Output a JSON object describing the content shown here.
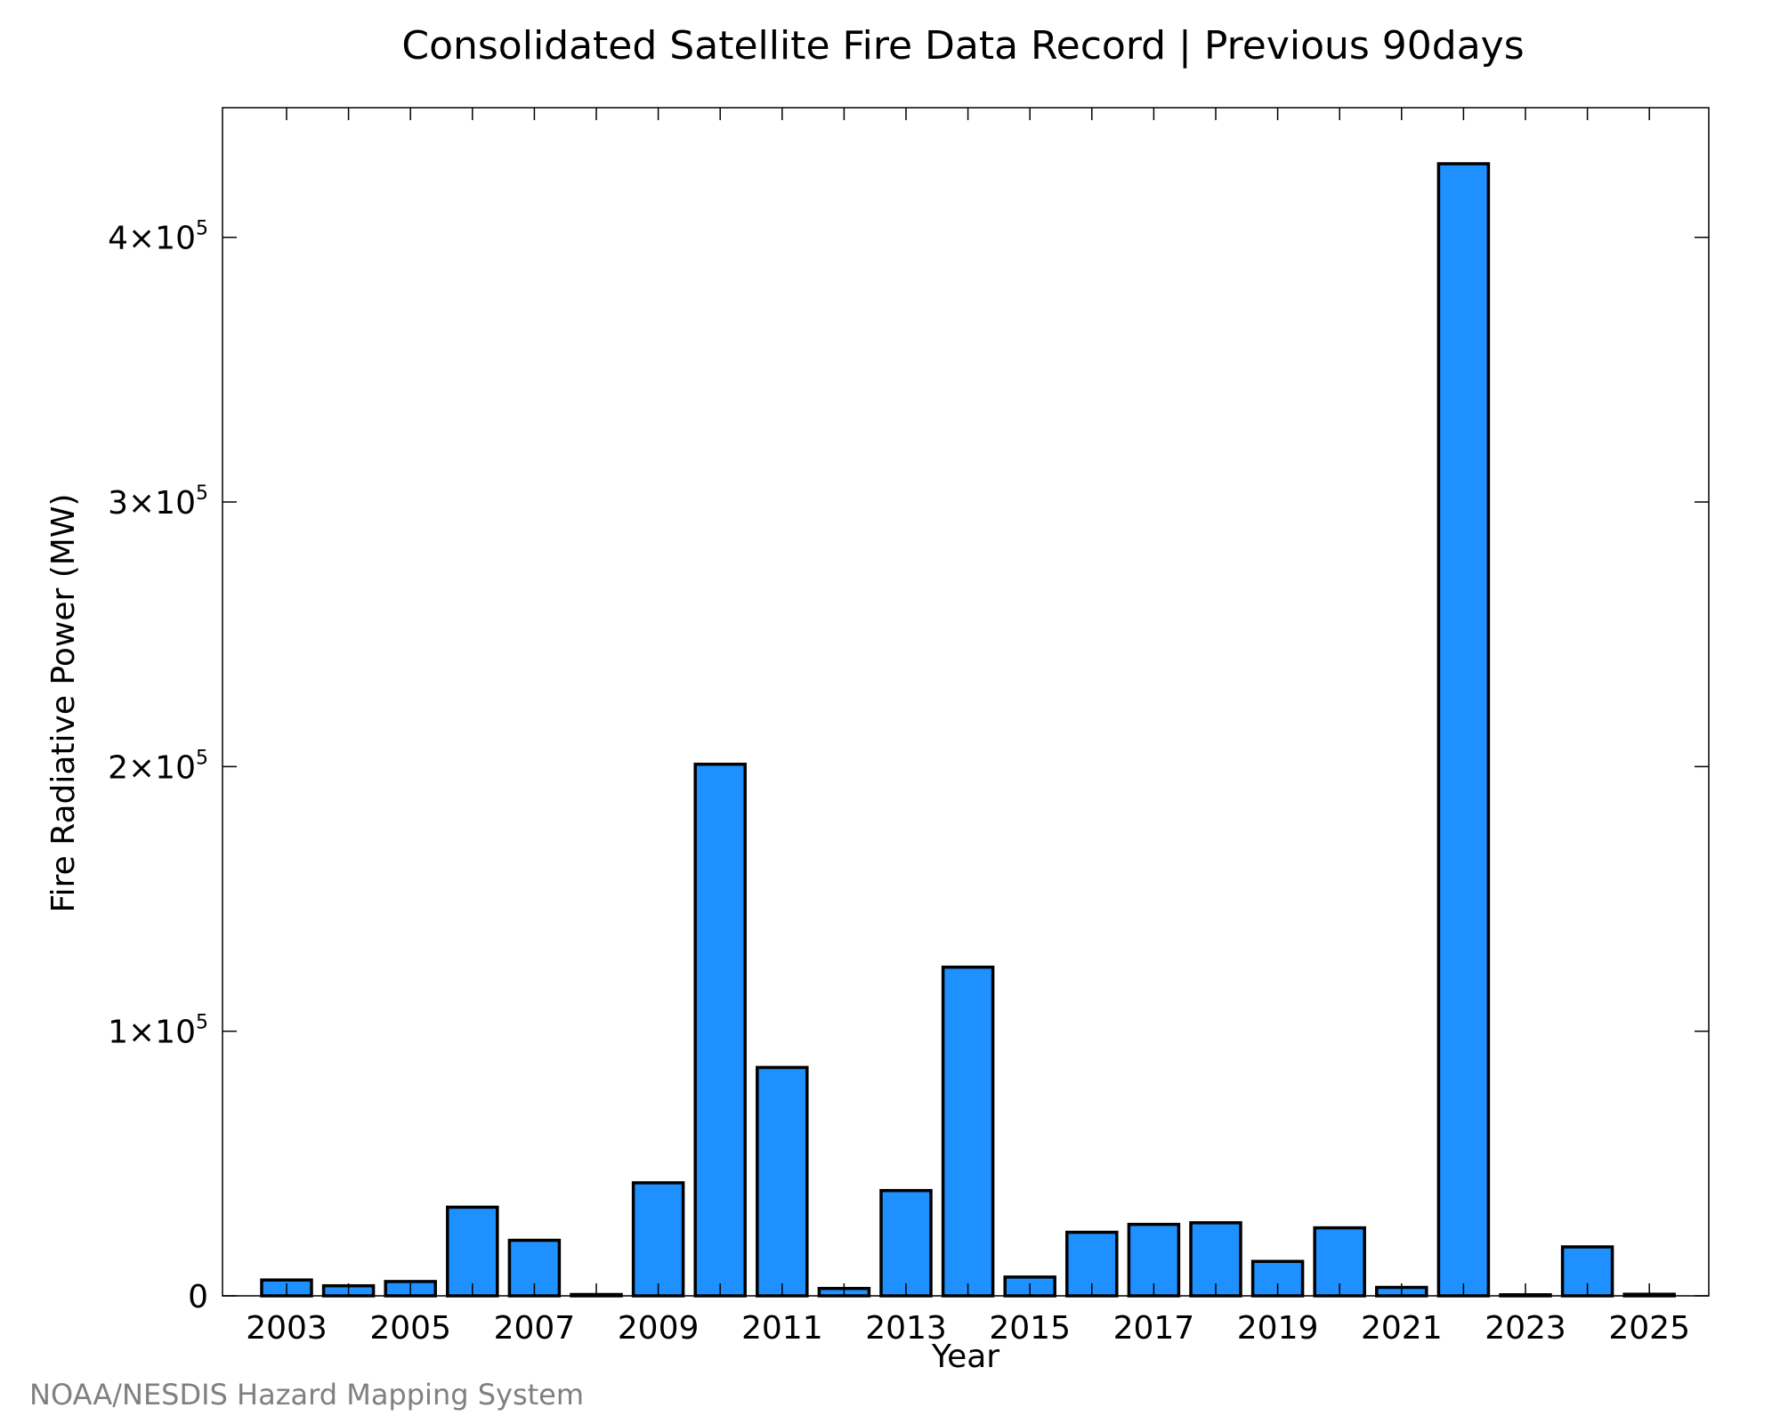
{
  "chart_data": {
    "type": "bar",
    "title": "Consolidated Satellite Fire Data Record | Previous 90days",
    "xlabel": "Year",
    "ylabel": "Fire Radiative Power (MW)",
    "categories": [
      "2003",
      "2004",
      "2005",
      "2006",
      "2007",
      "2008",
      "2009",
      "2010",
      "2011",
      "2012",
      "2013",
      "2014",
      "2015",
      "2016",
      "2017",
      "2018",
      "2019",
      "2020",
      "2021",
      "2022",
      "2023",
      "2024",
      "2025"
    ],
    "values": [
      6000,
      3800,
      5400,
      33500,
      21000,
      500,
      42700,
      200900,
      86300,
      2800,
      39800,
      124200,
      7100,
      24000,
      27000,
      27600,
      13000,
      25700,
      3200,
      427800,
      400,
      18500,
      600
    ],
    "xticks": [
      "2003",
      "2005",
      "2007",
      "2009",
      "2011",
      "2013",
      "2015",
      "2017",
      "2019",
      "2021",
      "2023",
      "2025"
    ],
    "yticks": [
      {
        "value": 0,
        "mantissa": "0",
        "exponent": ""
      },
      {
        "value": 100000,
        "mantissa": "1×10",
        "exponent": "5"
      },
      {
        "value": 200000,
        "mantissa": "2×10",
        "exponent": "5"
      },
      {
        "value": 300000,
        "mantissa": "3×10",
        "exponent": "5"
      },
      {
        "value": 400000,
        "mantissa": "4×10",
        "exponent": "5"
      }
    ],
    "ylim": [
      0,
      449000
    ],
    "grid": false,
    "bar_color": "#1E90FF",
    "edge_color": "#000000"
  },
  "source_note": "NOAA/NESDIS Hazard Mapping System"
}
